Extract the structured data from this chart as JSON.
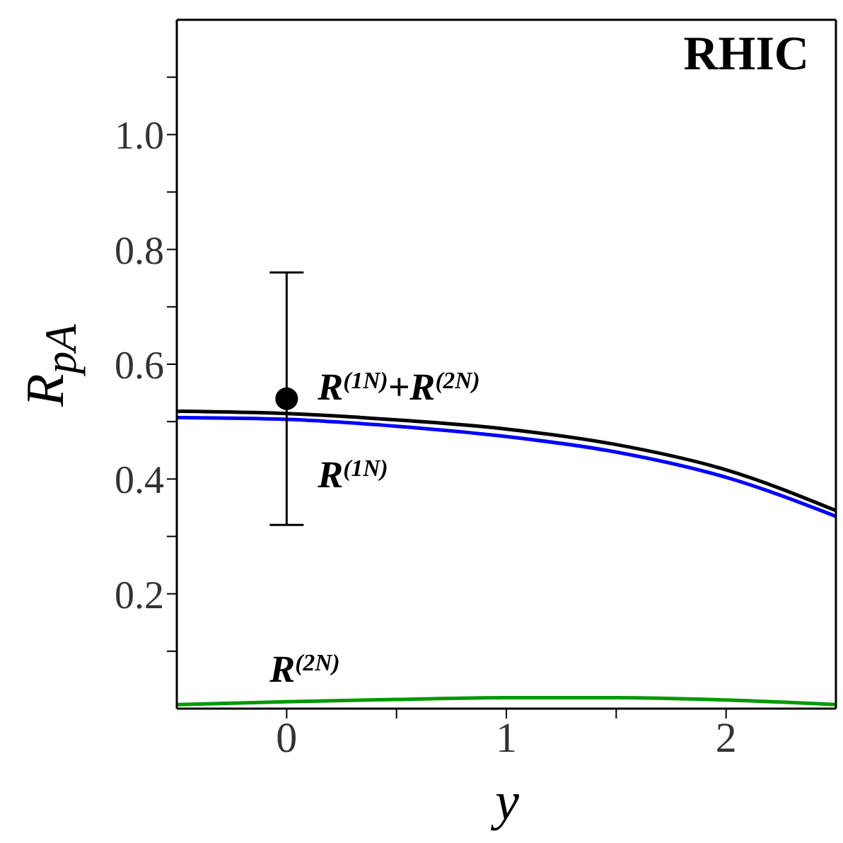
{
  "chart_data": {
    "type": "line",
    "title": "RHIC",
    "xlabel": "y",
    "ylabel": "R$_{pA}$",
    "xlim": [
      -0.5,
      2.5
    ],
    "xticks": [
      0,
      {
        "value": 0.5,
        "label": null
      },
      1,
      {
        "value": 1.5,
        "label": null
      },
      2
    ],
    "ylim": [
      0,
      1.2
    ],
    "yticks": [
      {
        "value": 0.1,
        "label": null
      },
      0.2,
      {
        "value": 0.3,
        "label": null
      },
      0.4,
      {
        "value": 0.5,
        "label": null
      },
      0.6,
      {
        "value": 0.7,
        "label": null
      },
      0.8,
      {
        "value": 0.9,
        "label": null
      },
      {
        "value": 1,
        "label": "1.0"
      },
      {
        "value": 1.1,
        "label": null
      }
    ],
    "grid": false,
    "legend": false,
    "series": [
      {
        "name": "R$^{(1N)}$+R$^{(2N)}$",
        "color": "#000000",
        "x": [
          -0.5,
          0,
          0.5,
          1,
          1.5,
          2,
          2.5
        ],
        "values": [
          0.518,
          0.514,
          0.503,
          0.487,
          0.46,
          0.416,
          0.345
        ]
      },
      {
        "name": "R$^{(1N)}$",
        "color": "#0000ff",
        "x": [
          -0.5,
          0,
          0.5,
          1,
          1.5,
          2,
          2.5
        ],
        "values": [
          0.507,
          0.504,
          0.492,
          0.474,
          0.447,
          0.403,
          0.335
        ]
      },
      {
        "name": "R$^{(2N)}$",
        "color": "#009900",
        "x": [
          -0.5,
          0,
          0.5,
          1,
          1.5,
          2,
          2.5
        ],
        "values": [
          0.007,
          0.012,
          0.016,
          0.019,
          0.019,
          0.015,
          0.007
        ]
      },
      {
        "type": "scatter",
        "color": "#000000",
        "marker": "circle",
        "x": [
          0
        ],
        "values": [
          0.54
        ],
        "errors": [
          [
            0.32,
            0.76
          ]
        ]
      }
    ]
  }
}
